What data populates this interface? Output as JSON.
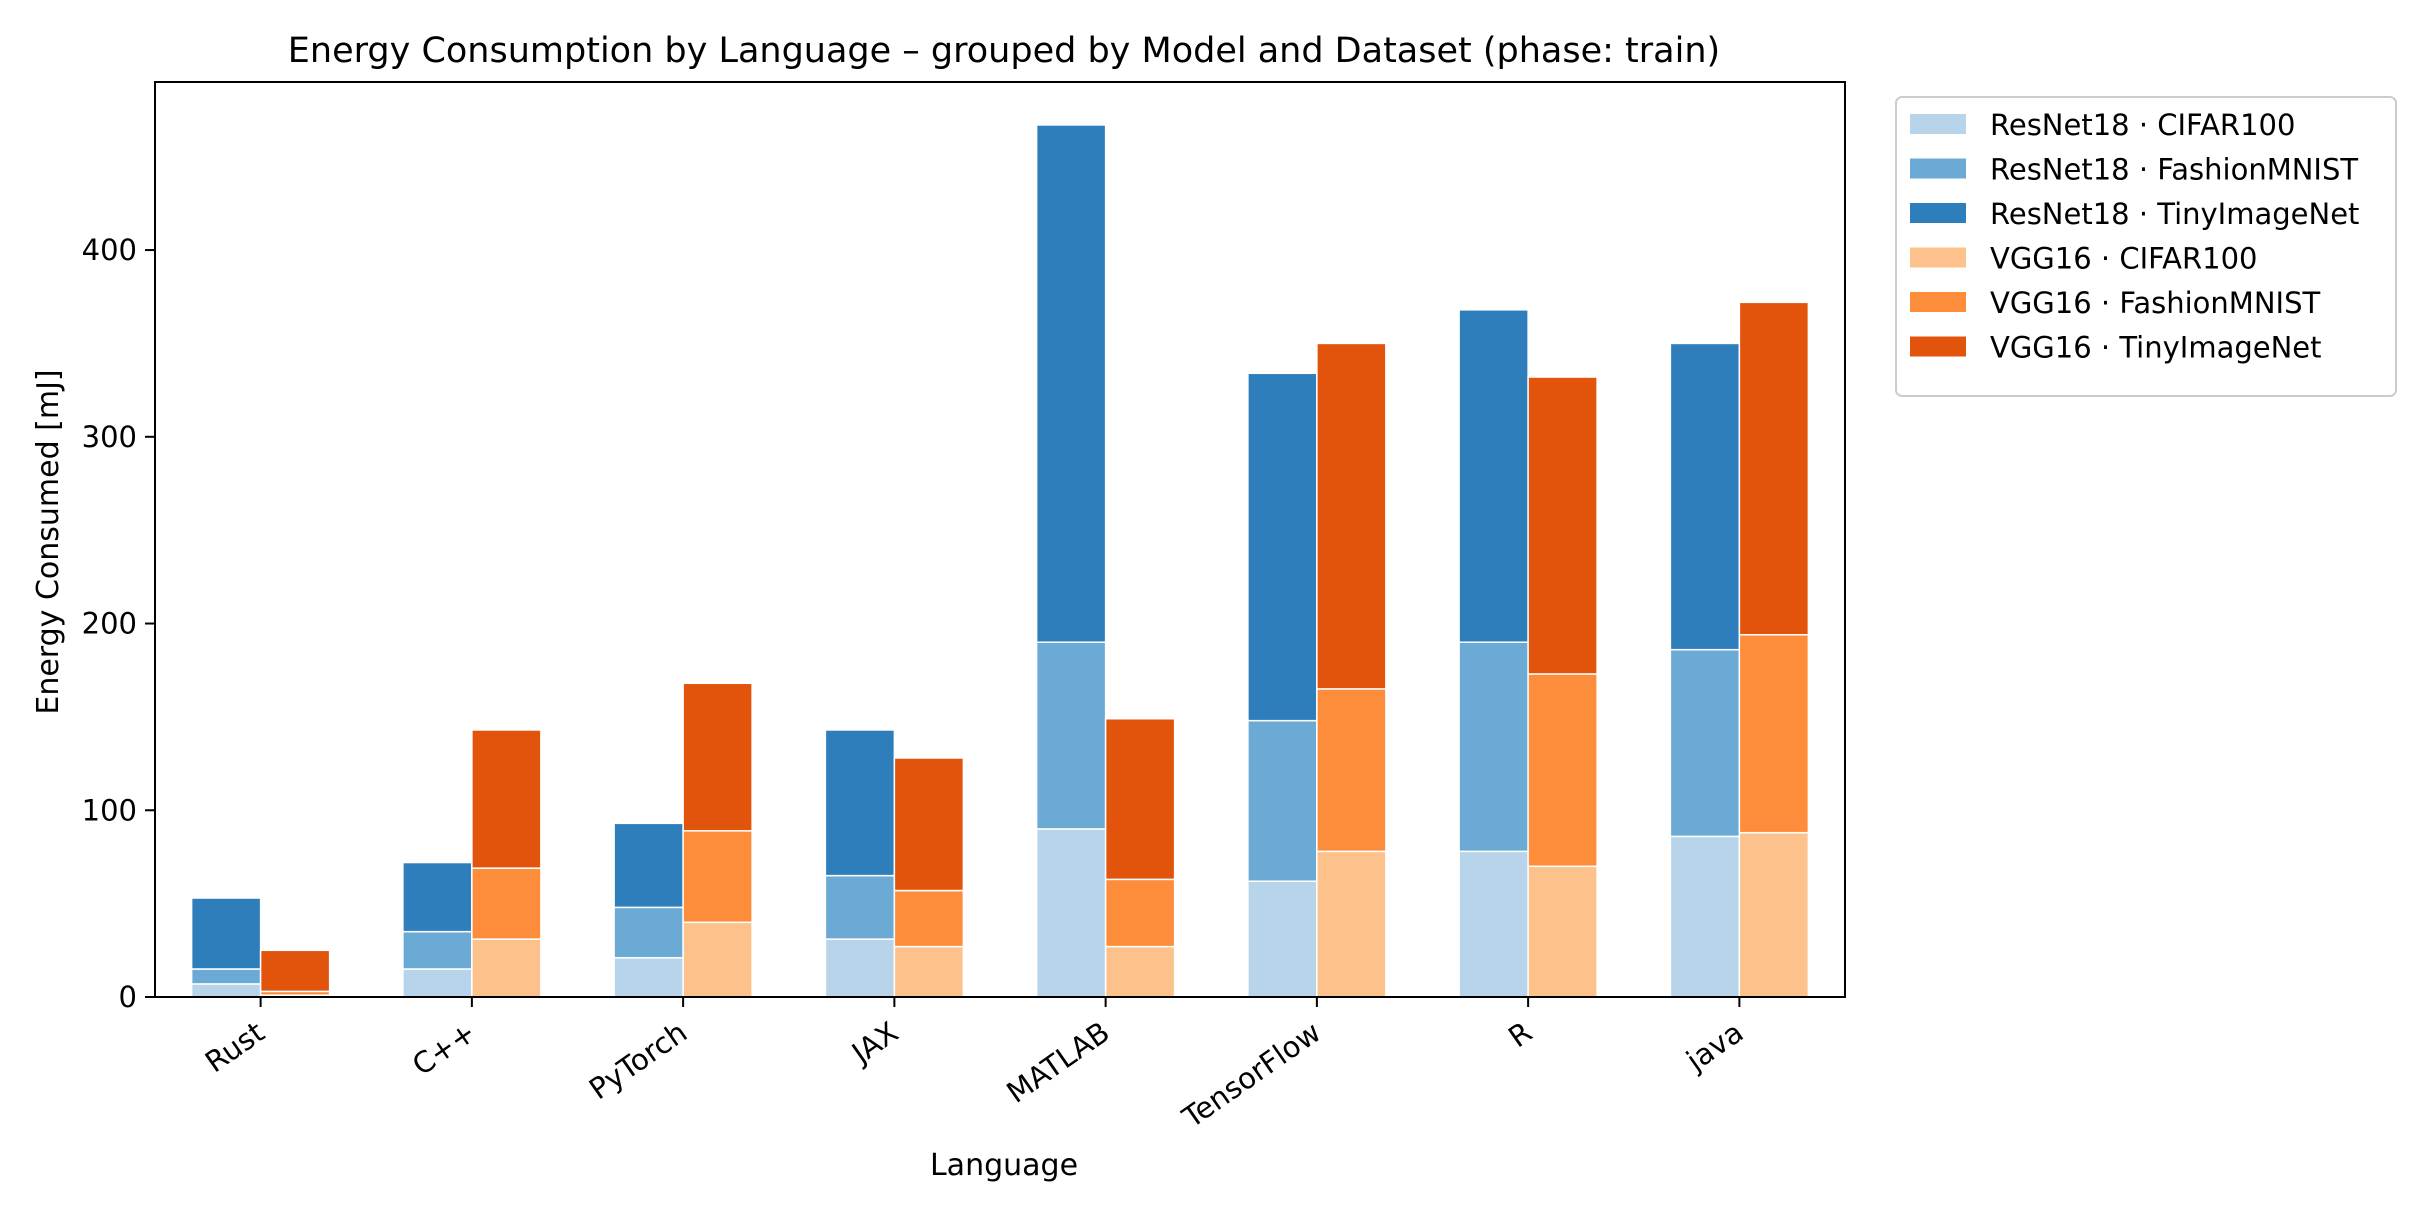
{
  "chart_data": {
    "type": "bar",
    "stacked": true,
    "title": "Energy Consumption by Language – grouped by Model and Dataset (phase: train)",
    "xlabel": "Language",
    "ylabel": "Energy Consumed [mJ]",
    "ylim": [
      0,
      490
    ],
    "yticks": [
      0,
      100,
      200,
      300,
      400
    ],
    "grid": false,
    "legend_position": "outside-top-right",
    "categories": [
      "Rust",
      "C++",
      "PyTorch",
      "JAX",
      "MATLAB",
      "TensorFlow",
      "R",
      "java"
    ],
    "groups": [
      {
        "model": "ResNet18",
        "series": [
          {
            "name": "ResNet18 · CIFAR100",
            "color": "#b8d4ea",
            "values": [
              7,
              15,
              21,
              31,
              90,
              62,
              78,
              86
            ]
          },
          {
            "name": "ResNet18 · FashionMNIST",
            "color": "#6aaad5",
            "values": [
              8,
              20,
              27,
              34,
              100,
              86,
              112,
              100
            ]
          },
          {
            "name": "ResNet18 · TinyImageNet",
            "color": "#2f7ebc",
            "values": [
              38,
              37,
              45,
              78,
              277,
              186,
              178,
              164
            ]
          }
        ]
      },
      {
        "model": "VGG16",
        "series": [
          {
            "name": "VGG16 · CIFAR100",
            "color": "#fdc28b",
            "values": [
              1,
              31,
              40,
              27,
              27,
              78,
              70,
              88
            ]
          },
          {
            "name": "VGG16 · FashionMNIST",
            "color": "#fd8c3b",
            "values": [
              2,
              38,
              49,
              30,
              36,
              87,
              103,
              106
            ]
          },
          {
            "name": "VGG16 · TinyImageNet",
            "color": "#e2530b",
            "values": [
              22,
              74,
              79,
              71,
              86,
              185,
              159,
              178
            ]
          }
        ]
      }
    ]
  }
}
